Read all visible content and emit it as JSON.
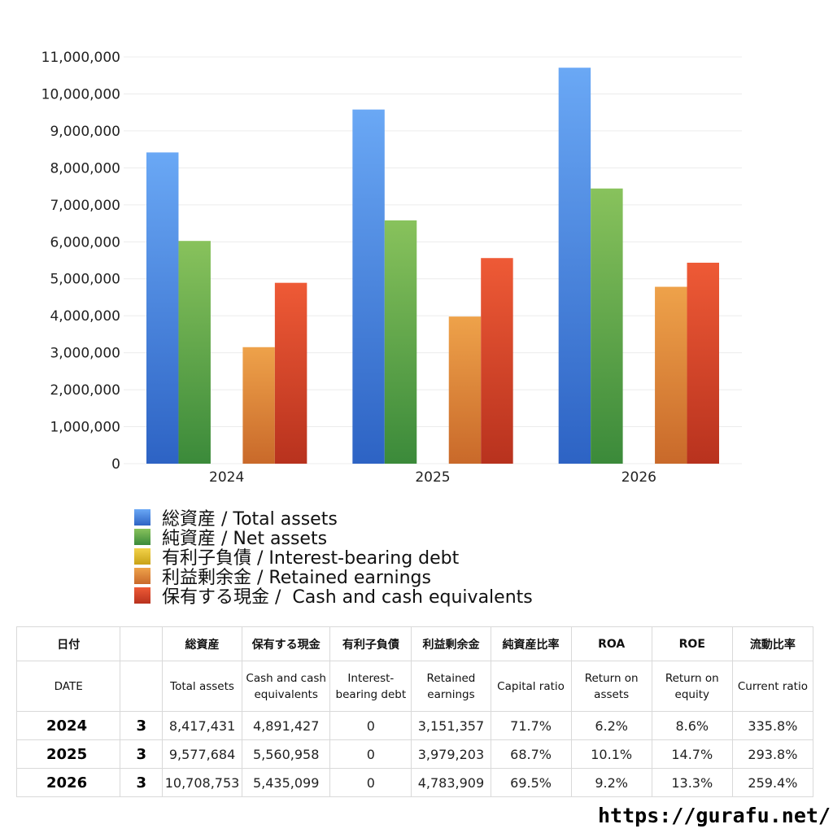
{
  "chart_data": {
    "type": "bar",
    "categories": [
      "2024",
      "2025",
      "2026"
    ],
    "ylim": [
      0,
      11000000
    ],
    "yticks": [
      "0",
      "1,000,000",
      "2,000,000",
      "3,000,000",
      "4,000,000",
      "5,000,000",
      "6,000,000",
      "7,000,000",
      "8,000,000",
      "9,000,000",
      "10,000,000",
      "11,000,000"
    ],
    "grid": true,
    "legend_position": "bottom",
    "series": [
      {
        "name": "総資産 / Total assets",
        "values": [
          8417431,
          9577684,
          10708753
        ],
        "color_top": "#6aa8f5",
        "color_bottom": "#2d63c4"
      },
      {
        "name": "純資産 / Net assets",
        "values": [
          6024000,
          6580000,
          7442000
        ],
        "color_top": "#88c25c",
        "color_bottom": "#3b8a3a"
      },
      {
        "name": "有利子負債 / Interest-bearing debt",
        "values": [
          0,
          0,
          0
        ],
        "color_top": "#f2d24a",
        "color_bottom": "#c9a216"
      },
      {
        "name": "利益剰余金 / Retained earnings",
        "values": [
          3151357,
          3979203,
          4783909
        ],
        "color_top": "#eea24a",
        "color_bottom": "#c9692a"
      },
      {
        "name": "保有する現金 /  Cash and cash equivalents",
        "values": [
          4891427,
          5560958,
          5435099
        ],
        "color_top": "#ee5a36",
        "color_bottom": "#b8321e"
      }
    ]
  },
  "table": {
    "headers_ja": [
      "日付",
      "",
      "総資産",
      "保有する現金",
      "有利子負債",
      "利益剰余金",
      "純資産比率",
      "ROA",
      "ROE",
      "流動比率"
    ],
    "headers_en": [
      "DATE",
      "",
      "Total assets",
      "Cash and cash equivalents",
      "Interest-bearing debt",
      "Retained earnings",
      "Capital ratio",
      "Return on assets",
      "Return on equity",
      "Current ratio"
    ],
    "rows": [
      [
        "2024",
        "3",
        "8,417,431",
        "4,891,427",
        "0",
        "3,151,357",
        "71.7%",
        "6.2%",
        "8.6%",
        "335.8%"
      ],
      [
        "2025",
        "3",
        "9,577,684",
        "5,560,958",
        "0",
        "3,979,203",
        "68.7%",
        "10.1%",
        "14.7%",
        "293.8%"
      ],
      [
        "2026",
        "3",
        "10,708,753",
        "5,435,099",
        "0",
        "4,783,909",
        "69.5%",
        "9.2%",
        "13.3%",
        "259.4%"
      ]
    ]
  },
  "footer": {
    "url": "https://gurafu.net/"
  }
}
